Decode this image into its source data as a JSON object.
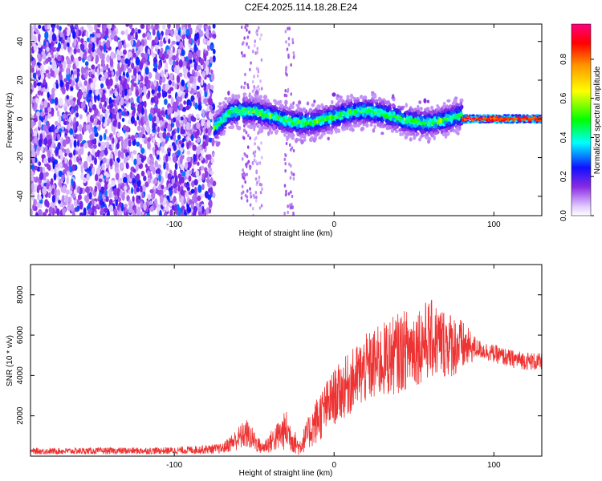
{
  "title": "C2E4.2025.114.18.28.E24",
  "chart_data": [
    {
      "type": "heatmap",
      "title": "C2E4.2025.114.18.28.E24",
      "xlabel": "Height of straight line (km)",
      "ylabel": "Frequency (Hz)",
      "xlim": [
        -190,
        130
      ],
      "ylim": [
        -50,
        49
      ],
      "x_ticks": [
        -100,
        0,
        100
      ],
      "y_ticks": [
        -40,
        -20,
        0,
        20,
        40
      ],
      "x_tick_labels": [
        "-100",
        "0",
        "100"
      ],
      "y_tick_labels": [
        "-40",
        "-20",
        "0",
        "20",
        "40"
      ],
      "colorbar": {
        "label": "Normalized spectral amplitude",
        "range": [
          0,
          0.98
        ],
        "ticks": [
          0.0,
          0.2,
          0.4,
          0.6,
          0.8
        ],
        "tick_labels": [
          "0.0",
          "0.2",
          "0.4",
          "0.6",
          "0.8"
        ],
        "colormap": "rainbow (white-violet-blue-cyan-green-yellow-orange-red-magenta)"
      },
      "regions": [
        {
          "x_range": [
            -190,
            -75
          ],
          "description": "broadband noise",
          "freq_range": [
            -50,
            49
          ],
          "amplitude": 0.15
        },
        {
          "x_range": [
            -75,
            80
          ],
          "description": "wavy central band",
          "center_freq": 1,
          "half_width": 8,
          "amplitude": 0.3
        },
        {
          "x_range": [
            80,
            130
          ],
          "description": "strong narrow line",
          "center_freq": 0,
          "half_width": 2,
          "amplitude": 0.9
        }
      ]
    },
    {
      "type": "line",
      "xlabel": "Height of straight line (km)",
      "ylabel": "SNR (10 * v/v)",
      "xlim": [
        -190,
        130
      ],
      "ylim": [
        0,
        9500
      ],
      "x_ticks": [
        -100,
        0,
        100
      ],
      "y_ticks": [
        2000,
        4000,
        6000,
        8000
      ],
      "x_tick_labels": [
        "-100",
        "0",
        "100"
      ],
      "y_tick_labels": [
        "2000",
        "4000",
        "6000",
        "8000"
      ],
      "series_color": "#ee3333",
      "envelope": [
        {
          "x": -190,
          "base": 200,
          "spread": 300
        },
        {
          "x": -100,
          "base": 220,
          "spread": 350
        },
        {
          "x": -70,
          "base": 300,
          "spread": 500
        },
        {
          "x": -55,
          "base": 900,
          "spread": 1500
        },
        {
          "x": -45,
          "base": 300,
          "spread": 600
        },
        {
          "x": -30,
          "base": 1000,
          "spread": 2000
        },
        {
          "x": -22,
          "base": 300,
          "spread": 800
        },
        {
          "x": -10,
          "base": 1500,
          "spread": 2500
        },
        {
          "x": 0,
          "base": 2500,
          "spread": 2800
        },
        {
          "x": 20,
          "base": 3800,
          "spread": 3500
        },
        {
          "x": 40,
          "base": 4500,
          "spread": 4000
        },
        {
          "x": 60,
          "base": 5200,
          "spread": 4000
        },
        {
          "x": 78,
          "base": 5000,
          "spread": 3000
        },
        {
          "x": 90,
          "base": 5200,
          "spread": 900
        },
        {
          "x": 110,
          "base": 4700,
          "spread": 900
        },
        {
          "x": 130,
          "base": 4500,
          "spread": 900
        }
      ]
    }
  ]
}
